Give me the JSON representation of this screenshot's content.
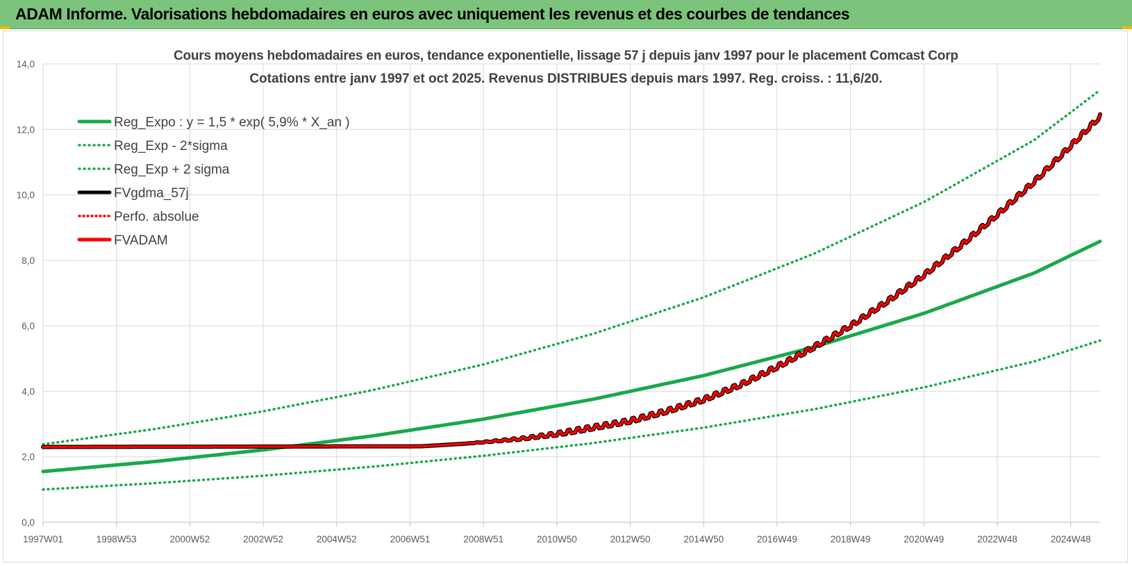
{
  "header": {
    "title": "ADAM Informe. Valorisations hebdomadaires en euros avec uniquement les revenus et des courbes de tendances"
  },
  "colors": {
    "header_bg": "#7cc47c",
    "green": "#1aa84b",
    "red": "#ff0000",
    "black": "#000000",
    "grid": "#d9d9d9"
  },
  "chart_data": {
    "type": "line",
    "title_lines": [
      "Cours moyens hebdomadaires en euros, tendance exponentielle, lissage 57 j depuis janv 1997  pour le placement Comcast Corp",
      "Cotations entre janv 1997 et oct 2025. Revenus DISTRIBUES depuis mars 1997.  Reg. croiss. : 11,6/20."
    ],
    "x_tick_labels": [
      "1997W01",
      "1998W53",
      "2000W52",
      "2002W52",
      "2004W52",
      "2006W51",
      "2008W51",
      "2010W50",
      "2012W50",
      "2014W50",
      "2016W49",
      "2018W49",
      "2020W49",
      "2022W48",
      "2024W48"
    ],
    "x_tick_years": [
      1997.0,
      1999.0,
      2001.0,
      2003.0,
      2005.0,
      2007.0,
      2009.0,
      2011.0,
      2013.0,
      2015.0,
      2017.0,
      2019.0,
      2021.0,
      2023.0,
      2025.0
    ],
    "x_range": [
      1997.0,
      2025.8
    ],
    "y_tick_labels": [
      "0,0",
      "2,0",
      "4,0",
      "6,0",
      "8,0",
      "10,0",
      "12,0",
      "14,0"
    ],
    "y_ticks": [
      0,
      2,
      4,
      6,
      8,
      10,
      12,
      14
    ],
    "ylim": [
      0,
      14
    ],
    "grid": true,
    "legend_position": "top-left",
    "series": [
      {
        "name": "Reg_Expo : y = 1,5 * exp( 5,9% *  X_an )",
        "style": "solid-green",
        "x": [
          1997,
          2000,
          2003,
          2006,
          2009,
          2012,
          2015,
          2018,
          2021,
          2024,
          2025.8
        ],
        "values": [
          1.55,
          1.85,
          2.21,
          2.64,
          3.15,
          3.76,
          4.48,
          5.35,
          6.38,
          7.61,
          8.58
        ]
      },
      {
        "name": "Reg_Exp - 2*sigma",
        "style": "dotted-green",
        "x": [
          1997,
          2000,
          2003,
          2006,
          2009,
          2012,
          2015,
          2018,
          2021,
          2024,
          2025.8
        ],
        "values": [
          1.0,
          1.19,
          1.42,
          1.7,
          2.03,
          2.42,
          2.89,
          3.45,
          4.12,
          4.91,
          5.55
        ]
      },
      {
        "name": "Reg_Exp + 2 sigma",
        "style": "dotted-green",
        "x": [
          1997,
          2000,
          2003,
          2006,
          2009,
          2012,
          2015,
          2018,
          2021,
          2024,
          2025.8
        ],
        "values": [
          2.38,
          2.84,
          3.39,
          4.04,
          4.82,
          5.76,
          6.87,
          8.2,
          9.78,
          11.67,
          13.2
        ]
      },
      {
        "name": "FVgdma_57j",
        "style": "solid-black",
        "x": [
          1997,
          2007.3,
          2008.5,
          2010,
          2011,
          2012,
          2013,
          2014,
          2015,
          2016,
          2017,
          2018,
          2019,
          2020,
          2021,
          2022,
          2023,
          2024,
          2025,
          2025.8
        ],
        "values": [
          2.3,
          2.32,
          2.4,
          2.55,
          2.7,
          2.9,
          3.1,
          3.4,
          3.75,
          4.2,
          4.75,
          5.35,
          6.0,
          6.75,
          7.55,
          8.45,
          9.4,
          10.4,
          11.5,
          12.4
        ]
      },
      {
        "name": "Perfo. absolue",
        "style": "dotted-red",
        "x": [],
        "values": []
      },
      {
        "name": "FVADAM",
        "style": "solid-red",
        "x": [
          1997,
          2007.3,
          2008.5,
          2010,
          2011,
          2012,
          2013,
          2014,
          2015,
          2016,
          2017,
          2018,
          2019,
          2020,
          2021,
          2022,
          2023,
          2024,
          2025,
          2025.8
        ],
        "values": [
          2.3,
          2.32,
          2.4,
          2.55,
          2.7,
          2.9,
          3.1,
          3.4,
          3.75,
          4.2,
          4.75,
          5.35,
          6.0,
          6.75,
          7.55,
          8.45,
          9.4,
          10.4,
          11.5,
          12.4
        ]
      }
    ]
  }
}
